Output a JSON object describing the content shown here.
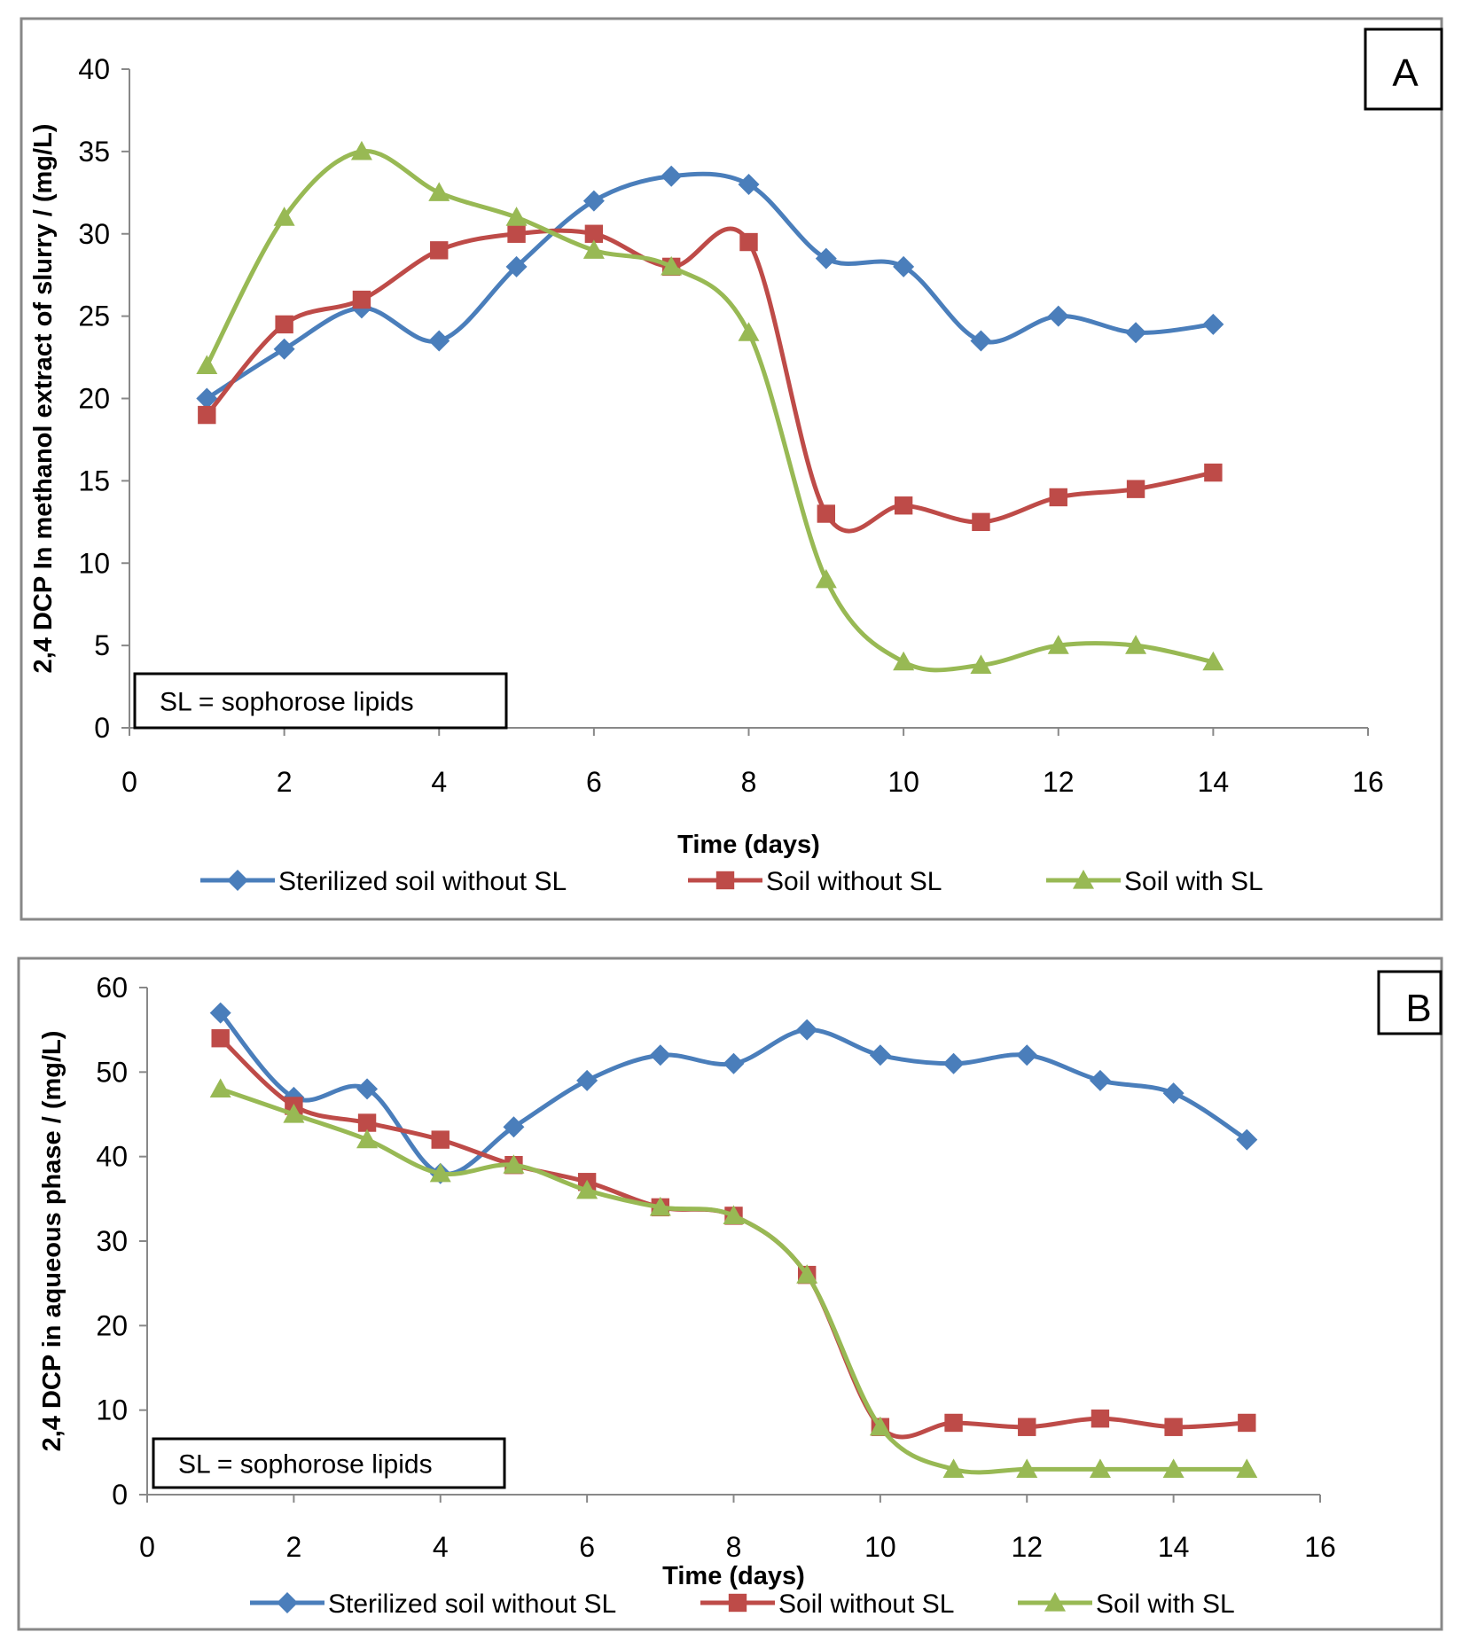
{
  "chart_data": [
    {
      "type": "line",
      "panel_label": "A",
      "xlabel": "Time (days)",
      "ylabel": "2,4 DCP In methanol extract of slurry  / (mg/L)",
      "xlim": [
        0,
        16
      ],
      "ylim": [
        0,
        40
      ],
      "xticks": [
        0,
        2,
        4,
        6,
        8,
        10,
        12,
        14,
        16
      ],
      "yticks": [
        0,
        5,
        10,
        15,
        20,
        25,
        30,
        35,
        40
      ],
      "annotation": "SL = sophorose lipids",
      "legend_position": "bottom",
      "grid": false,
      "x": [
        1,
        2,
        3,
        4,
        5,
        6,
        7,
        8,
        9,
        10,
        11,
        12,
        13,
        14
      ],
      "series": [
        {
          "name": "Sterilized soil without SL",
          "color": "#4a7ebb",
          "marker": "diamond",
          "values": [
            20,
            23,
            25.5,
            23.5,
            28,
            32,
            33.5,
            33,
            28.5,
            28,
            23.5,
            25,
            24,
            24.5
          ]
        },
        {
          "name": "Soil without SL",
          "color": "#be4b48",
          "marker": "square",
          "values": [
            19,
            24.5,
            26,
            29,
            30,
            30,
            28,
            29.5,
            13,
            13.5,
            12.5,
            14,
            14.5,
            15.5
          ]
        },
        {
          "name": "Soil with SL",
          "color": "#98b954",
          "marker": "triangle",
          "values": [
            22,
            31,
            35,
            32.5,
            31,
            29,
            28,
            24,
            9,
            4,
            3.8,
            5,
            5,
            4
          ]
        }
      ]
    },
    {
      "type": "line",
      "panel_label": "B",
      "xlabel": "Time (days)",
      "ylabel": "2,4 DCP in aqueous phase / (mg/L)",
      "xlim": [
        0,
        16
      ],
      "ylim": [
        0,
        60
      ],
      "xticks": [
        0,
        2,
        4,
        6,
        8,
        10,
        12,
        14,
        16
      ],
      "yticks": [
        0,
        10,
        20,
        30,
        40,
        50,
        60
      ],
      "annotation": "SL = sophorose lipids",
      "legend_position": "bottom",
      "grid": false,
      "x": [
        1,
        2,
        3,
        4,
        5,
        6,
        7,
        8,
        9,
        10,
        11,
        12,
        13,
        14,
        15
      ],
      "series": [
        {
          "name": "Sterilized soil without SL",
          "color": "#4a7ebb",
          "marker": "diamond",
          "values": [
            57,
            47,
            48,
            38,
            43.5,
            49,
            52,
            51,
            55,
            52,
            51,
            52,
            49,
            47.5,
            42
          ]
        },
        {
          "name": "Soil without SL",
          "color": "#be4b48",
          "marker": "square",
          "values": [
            54,
            46,
            44,
            42,
            39,
            37,
            34,
            33,
            26,
            8,
            8.5,
            8,
            9,
            8,
            8.5
          ]
        },
        {
          "name": "Soil with SL",
          "color": "#98b954",
          "marker": "triangle",
          "values": [
            48,
            45,
            42,
            38,
            39,
            36,
            34,
            33,
            26,
            8,
            3,
            3,
            3,
            3,
            3
          ]
        }
      ]
    }
  ]
}
